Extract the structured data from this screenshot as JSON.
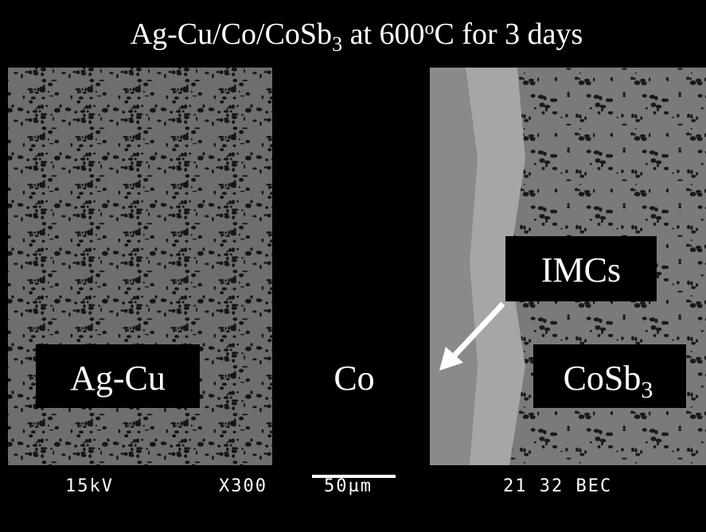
{
  "header": {
    "title": {
      "parts": [
        "Ag-Cu/Co/CoSb",
        "3",
        " at 600",
        "o",
        "C for 3 days"
      ]
    }
  },
  "labels": {
    "left": "Ag-Cu",
    "middle": "Co",
    "right": {
      "parts": [
        "CoSb",
        "3"
      ]
    },
    "arrow": "IMCs"
  },
  "footer": {
    "voltage": "15kV",
    "magnification": "X300",
    "scale": "50µm",
    "info": "21 32 BEC"
  }
}
